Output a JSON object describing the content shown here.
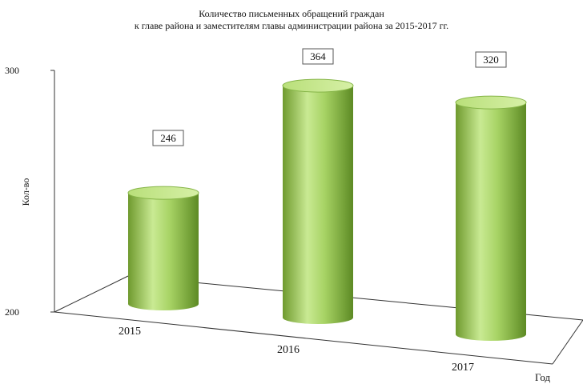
{
  "chart_data": {
    "type": "bar",
    "title": "Количество письменных обращений граждан",
    "subtitle": "к главе района и заместителям главы администрации района за 2015-2017 гг.",
    "xlabel": "Год",
    "ylabel": "Кол-во",
    "categories": [
      "2015",
      "2016",
      "2017"
    ],
    "values": [
      246,
      364,
      320
    ],
    "data_labels": [
      "246",
      "364",
      "320"
    ],
    "ylim": [
      200,
      300
    ],
    "yticks": [
      "200",
      "300"
    ],
    "bar_shape": "cylinder",
    "bar_color": "#9ccc5a",
    "grid": false,
    "legend": "none"
  }
}
